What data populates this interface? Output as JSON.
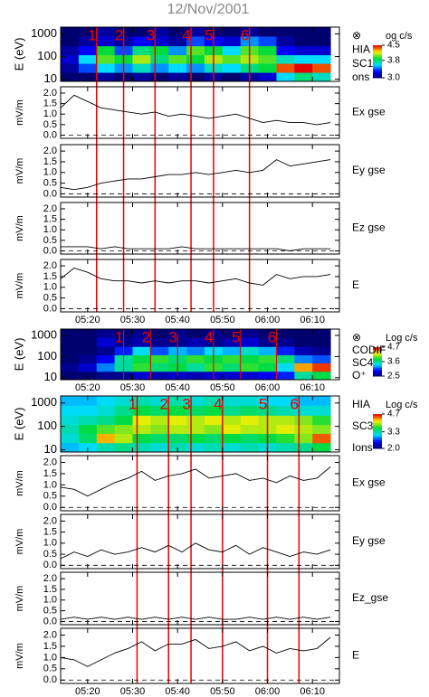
{
  "title": "12/Nov/2001",
  "chart_data": [
    {
      "type": "heatmap",
      "ylabel": "E (eV)",
      "log": true,
      "ylim": [
        8,
        2000
      ],
      "yticks": [
        10,
        100,
        1000
      ],
      "xlim": [
        "05:14",
        "06:16"
      ],
      "xticks": [
        "05:20",
        "05:30",
        "05:40",
        "05:50",
        "06:00",
        "06:10"
      ],
      "labels": [
        "⊗",
        "HIA",
        "SC1",
        "ons"
      ],
      "colorbar": {
        "label": "og c/s",
        "lim": [
          3,
          4.5
        ],
        "ticks": [
          4.5,
          3.8,
          {
            "value": 3,
            "label": "3.0"
          }
        ]
      },
      "events": [
        {
          "time": "05:22",
          "label": "1"
        },
        {
          "time": "05:28",
          "label": "2"
        },
        {
          "time": "05:35",
          "label": "3"
        },
        {
          "time": "05:43",
          "label": "4"
        },
        {
          "time": "05:48",
          "label": "5"
        },
        {
          "time": "05:56",
          "label": "6"
        }
      ],
      "xbins": [
        "05:14",
        "05:18",
        "05:22",
        "05:26",
        "05:30",
        "05:34",
        "05:38",
        "05:42",
        "05:46",
        "05:50",
        "05:54",
        "05:58",
        "06:02",
        "06:06",
        "06:10",
        "06:14"
      ],
      "ybins": [
        8,
        20,
        50,
        120,
        300,
        800,
        2000
      ],
      "z": [
        [
          3.0,
          3.0,
          3.1,
          3.0,
          3.1,
          3.0,
          3.1,
          3.0,
          3.1,
          3.0,
          3.1,
          3.2,
          3.6,
          3.8,
          3.7
        ],
        [
          3.1,
          3.4,
          3.6,
          3.5,
          3.7,
          3.5,
          3.6,
          3.5,
          3.7,
          3.6,
          3.8,
          3.9,
          4.4,
          4.5,
          4.4
        ],
        [
          3.2,
          3.6,
          4.0,
          3.9,
          4.1,
          3.8,
          4.0,
          3.9,
          4.1,
          4.0,
          4.1,
          4.0,
          3.7,
          3.6,
          3.6
        ],
        [
          3.1,
          3.3,
          3.9,
          3.4,
          3.8,
          3.9,
          3.5,
          4.0,
          3.9,
          3.6,
          4.0,
          3.9,
          3.3,
          3.2,
          3.2
        ],
        [
          3.0,
          3.1,
          3.2,
          3.1,
          3.3,
          3.2,
          3.1,
          3.4,
          3.3,
          3.2,
          3.5,
          3.4,
          3.1,
          3.0,
          3.0
        ],
        [
          3.0,
          3.0,
          3.1,
          3.0,
          3.0,
          3.1,
          3.0,
          3.1,
          3.0,
          3.0,
          3.1,
          3.0,
          3.0,
          3.0,
          3.0
        ]
      ]
    },
    {
      "type": "line",
      "ylabel": "mV/m",
      "labels": [
        "Ex gse"
      ],
      "color": "#000000",
      "ref_line": 0,
      "ylim": [
        -0.15,
        2.3
      ],
      "yticks": [
        {
          "value": 0,
          "label": "0.0"
        },
        0.5,
        {
          "value": 1,
          "label": "1.0"
        },
        1.5,
        {
          "value": 2,
          "label": "2.0"
        }
      ],
      "xlim": [
        "05:14",
        "06:16"
      ],
      "xticks": [
        "05:20",
        "05:30",
        "05:40",
        "05:50",
        "06:00",
        "06:10"
      ],
      "x": [
        "05:14",
        "05:17",
        "05:20",
        "05:23",
        "05:26",
        "05:29",
        "05:32",
        "05:35",
        "05:38",
        "05:41",
        "05:44",
        "05:47",
        "05:50",
        "05:53",
        "05:56",
        "05:59",
        "06:02",
        "06:05",
        "06:08",
        "06:11",
        "06:14"
      ],
      "values": [
        1.3,
        1.9,
        1.6,
        1.3,
        1.2,
        1.1,
        1.0,
        1.1,
        0.9,
        1.0,
        0.9,
        0.8,
        0.9,
        1.0,
        0.8,
        0.6,
        0.7,
        0.6,
        0.6,
        0.5,
        0.6
      ]
    },
    {
      "type": "line",
      "ylabel": "mV/m",
      "labels": [
        "Ey gse"
      ],
      "color": "#000000",
      "ref_line": 0,
      "ylim": [
        -0.15,
        2.3
      ],
      "yticks": [
        {
          "value": 0,
          "label": "0.0"
        },
        0.5,
        {
          "value": 1,
          "label": "1.0"
        },
        1.5,
        {
          "value": 2,
          "label": "2.0"
        }
      ],
      "xlim": [
        "05:14",
        "06:16"
      ],
      "xticks": [
        "05:20",
        "05:30",
        "05:40",
        "05:50",
        "06:00",
        "06:10"
      ],
      "x": [
        "05:14",
        "05:17",
        "05:20",
        "05:23",
        "05:26",
        "05:29",
        "05:32",
        "05:35",
        "05:38",
        "05:41",
        "05:44",
        "05:47",
        "05:50",
        "05:53",
        "05:56",
        "05:59",
        "06:02",
        "06:05",
        "06:08",
        "06:11",
        "06:14"
      ],
      "values": [
        0.3,
        0.2,
        0.3,
        0.5,
        0.6,
        0.7,
        0.7,
        0.8,
        0.9,
        0.9,
        1.0,
        0.9,
        1.0,
        1.1,
        1.0,
        1.1,
        1.6,
        1.3,
        1.4,
        1.5,
        1.6
      ]
    },
    {
      "type": "line",
      "ylabel": "mV/m",
      "labels": [
        "Ez gse"
      ],
      "color": "#000000",
      "ref_line": 0,
      "ylim": [
        -0.15,
        2.3
      ],
      "yticks": [
        {
          "value": 0,
          "label": "0.0"
        },
        0.5,
        {
          "value": 1,
          "label": "1.0"
        },
        1.5,
        {
          "value": 2,
          "label": "2.0"
        }
      ],
      "xlim": [
        "05:14",
        "06:16"
      ],
      "xticks": [
        "05:20",
        "05:30",
        "05:40",
        "05:50",
        "06:00",
        "06:10"
      ],
      "x": [
        "05:14",
        "05:17",
        "05:20",
        "05:23",
        "05:26",
        "05:29",
        "05:32",
        "05:35",
        "05:38",
        "05:41",
        "05:44",
        "05:47",
        "05:50",
        "05:53",
        "05:56",
        "05:59",
        "06:02",
        "06:05",
        "06:08",
        "06:11",
        "06:14"
      ],
      "values": [
        0.2,
        0.2,
        0.2,
        0.1,
        0.2,
        0.1,
        0.1,
        0.1,
        0.1,
        0.2,
        0.1,
        0.1,
        0.1,
        0.1,
        0.1,
        0.1,
        0.1,
        0.0,
        0.1,
        0.1,
        0.1
      ]
    },
    {
      "type": "line",
      "ylabel": "mV/m",
      "labels": [
        "E"
      ],
      "color": "#000000",
      "ref_line": 0,
      "xlabels": true,
      "ylim": [
        -0.15,
        2.3
      ],
      "yticks": [
        {
          "value": 0,
          "label": "0.0"
        },
        0.5,
        {
          "value": 1,
          "label": "1.0"
        },
        1.5,
        {
          "value": 2,
          "label": "2.0"
        }
      ],
      "xlim": [
        "05:14",
        "06:16"
      ],
      "xticks": [
        "05:20",
        "05:30",
        "05:40",
        "05:50",
        "06:00",
        "06:10"
      ],
      "x": [
        "05:14",
        "05:17",
        "05:20",
        "05:23",
        "05:26",
        "05:29",
        "05:32",
        "05:35",
        "05:38",
        "05:41",
        "05:44",
        "05:47",
        "05:50",
        "05:53",
        "05:56",
        "05:59",
        "06:02",
        "06:05",
        "06:08",
        "06:11",
        "06:14"
      ],
      "values": [
        1.4,
        1.9,
        1.7,
        1.4,
        1.3,
        1.3,
        1.2,
        1.3,
        1.2,
        1.3,
        1.3,
        1.2,
        1.3,
        1.4,
        1.2,
        1.1,
        1.6,
        1.4,
        1.5,
        1.5,
        1.6
      ]
    },
    {
      "type": "heatmap",
      "ylabel": "E (eV)",
      "log": true,
      "ylim": [
        8,
        2000
      ],
      "yticks": [
        10,
        100,
        1000
      ],
      "xlabels": true,
      "xlim": [
        "05:14",
        "06:16"
      ],
      "xticks": [
        "05:20",
        "05:30",
        "05:40",
        "05:50",
        "06:00",
        "06:10"
      ],
      "labels": [
        "⊗",
        "CODIF",
        "SC4",
        "O⁺"
      ],
      "colorbar": {
        "label": "Log c/s",
        "lim": [
          2.5,
          4.7
        ],
        "ticks": [
          4.7,
          3.6,
          2.5
        ]
      },
      "events": [
        {
          "time": "05:28",
          "label": "1"
        },
        {
          "time": "05:34",
          "label": "2"
        },
        {
          "time": "05:40",
          "label": "3"
        },
        {
          "time": "05:48",
          "label": "4"
        },
        {
          "time": "05:54",
          "label": "5"
        },
        {
          "time": "06:02",
          "label": "6"
        }
      ],
      "xbins": [
        "05:14",
        "05:18",
        "05:22",
        "05:26",
        "05:30",
        "05:34",
        "05:38",
        "05:42",
        "05:46",
        "05:50",
        "05:54",
        "05:58",
        "06:02",
        "06:06",
        "06:10",
        "06:14"
      ],
      "ybins": [
        8,
        20,
        50,
        120,
        300,
        800,
        2000
      ],
      "z": [
        [
          2.4,
          2.5,
          2.6,
          2.6,
          2.8,
          2.7,
          2.8,
          2.7,
          2.8,
          2.8,
          2.8,
          2.9,
          3.0,
          3.6,
          3.8
        ],
        [
          2.6,
          2.8,
          3.2,
          3.6,
          3.9,
          3.7,
          3.8,
          3.6,
          3.9,
          3.7,
          3.9,
          3.8,
          3.4,
          4.4,
          4.6
        ],
        [
          2.5,
          2.6,
          2.9,
          3.6,
          3.8,
          3.9,
          3.7,
          3.9,
          3.8,
          3.9,
          3.8,
          3.9,
          3.7,
          3.2,
          3.1
        ],
        [
          2.4,
          2.5,
          2.6,
          3.0,
          3.4,
          3.1,
          3.3,
          3.2,
          3.4,
          3.3,
          3.5,
          3.3,
          3.0,
          2.7,
          2.6
        ],
        [
          2.4,
          2.5,
          2.8,
          2.6,
          2.7,
          2.6,
          2.6,
          2.7,
          2.6,
          2.7,
          2.8,
          2.6,
          2.6,
          2.5,
          2.5
        ],
        [
          2.4,
          2.5,
          2.6,
          2.5,
          2.6,
          2.5,
          2.6,
          2.5,
          2.6,
          2.5,
          2.6,
          2.5,
          2.5,
          2.5,
          2.5
        ]
      ]
    },
    {
      "type": "heatmap",
      "ylabel": "E (eV)",
      "log": true,
      "ylim": [
        8,
        2000
      ],
      "yticks": [
        10,
        100,
        1000
      ],
      "xlim": [
        "05:14",
        "06:16"
      ],
      "xticks": [
        "05:20",
        "05:30",
        "05:40",
        "05:50",
        "06:00",
        "06:10"
      ],
      "labels": [
        "HIA",
        "SC3",
        "Ions"
      ],
      "colorbar": {
        "label": "Log c/s",
        "lim": [
          2,
          4.7
        ],
        "ticks": [
          4.7,
          3.3,
          {
            "value": 2,
            "label": "2.0"
          }
        ]
      },
      "events": [
        {
          "time": "05:31",
          "label": "1"
        },
        {
          "time": "05:38",
          "label": "2"
        },
        {
          "time": "05:43",
          "label": "3"
        },
        {
          "time": "05:50",
          "label": "4"
        },
        {
          "time": "06:00",
          "label": "5"
        },
        {
          "time": "06:07",
          "label": "6"
        }
      ],
      "xbins": [
        "05:14",
        "05:18",
        "05:22",
        "05:26",
        "05:30",
        "05:34",
        "05:38",
        "05:42",
        "05:46",
        "05:50",
        "05:54",
        "05:58",
        "06:02",
        "06:06",
        "06:10",
        "06:14"
      ],
      "ybins": [
        8,
        20,
        50,
        120,
        300,
        800,
        2000
      ],
      "z": [
        [
          3.0,
          3.1,
          3.3,
          3.4,
          3.3,
          3.2,
          3.3,
          3.2,
          3.3,
          3.2,
          3.3,
          3.2,
          3.3,
          3.4,
          3.6
        ],
        [
          3.2,
          3.5,
          4.3,
          4.0,
          3.6,
          3.5,
          3.5,
          3.6,
          3.5,
          3.6,
          3.5,
          3.6,
          3.7,
          3.9,
          4.5
        ],
        [
          3.3,
          3.6,
          3.8,
          3.9,
          4.0,
          3.9,
          4.0,
          4.0,
          3.9,
          4.1,
          4.0,
          4.0,
          4.1,
          4.0,
          3.9
        ],
        [
          3.2,
          3.3,
          3.4,
          3.6,
          4.1,
          4.0,
          4.1,
          4.0,
          4.1,
          4.0,
          4.1,
          4.0,
          4.0,
          3.9,
          3.7
        ],
        [
          3.1,
          3.1,
          3.2,
          3.4,
          3.6,
          3.5,
          3.6,
          3.5,
          3.6,
          3.4,
          3.5,
          3.4,
          3.3,
          3.2,
          3.2
        ],
        [
          3.0,
          3.0,
          3.1,
          3.2,
          3.3,
          3.2,
          3.3,
          3.2,
          3.3,
          3.2,
          3.2,
          3.1,
          3.1,
          3.0,
          3.0
        ]
      ]
    },
    {
      "type": "line",
      "ylabel": "mV/m",
      "labels": [
        "Ex gse"
      ],
      "color": "#000000",
      "ref_line": 0,
      "ylim": [
        -0.15,
        2.3
      ],
      "yticks": [
        {
          "value": 0,
          "label": "0.0"
        },
        0.5,
        {
          "value": 1,
          "label": "1.0"
        },
        1.5,
        {
          "value": 2,
          "label": "2.0"
        }
      ],
      "xlim": [
        "05:14",
        "06:16"
      ],
      "xticks": [
        "05:20",
        "05:30",
        "05:40",
        "05:50",
        "06:00",
        "06:10"
      ],
      "x": [
        "05:14",
        "05:17",
        "05:20",
        "05:23",
        "05:26",
        "05:29",
        "05:32",
        "05:35",
        "05:38",
        "05:41",
        "05:44",
        "05:47",
        "05:50",
        "05:53",
        "05:56",
        "05:59",
        "06:02",
        "06:05",
        "06:08",
        "06:11",
        "06:14"
      ],
      "values": [
        0.9,
        0.8,
        0.5,
        0.8,
        1.1,
        1.3,
        1.6,
        1.2,
        1.4,
        1.5,
        1.7,
        1.3,
        1.4,
        1.5,
        1.2,
        1.3,
        1.1,
        1.4,
        1.2,
        1.3,
        1.8
      ]
    },
    {
      "type": "line",
      "ylabel": "mV/m",
      "labels": [
        "Ey gse"
      ],
      "color": "#000000",
      "ref_line": 0,
      "ylim": [
        -0.15,
        2.3
      ],
      "yticks": [
        {
          "value": 0,
          "label": "0.0"
        },
        0.5,
        {
          "value": 1,
          "label": "1.0"
        },
        1.5,
        {
          "value": 2,
          "label": "2.0"
        }
      ],
      "xlim": [
        "05:14",
        "06:16"
      ],
      "xticks": [
        "05:20",
        "05:30",
        "05:40",
        "05:50",
        "06:00",
        "06:10"
      ],
      "x": [
        "05:14",
        "05:17",
        "05:20",
        "05:23",
        "05:26",
        "05:29",
        "05:32",
        "05:35",
        "05:38",
        "05:41",
        "05:44",
        "05:47",
        "05:50",
        "05:53",
        "05:56",
        "05:59",
        "06:02",
        "06:05",
        "06:08",
        "06:11",
        "06:14"
      ],
      "values": [
        0.3,
        0.6,
        0.4,
        0.7,
        0.5,
        0.6,
        0.8,
        0.6,
        0.9,
        0.6,
        1.0,
        0.7,
        0.6,
        0.9,
        0.5,
        0.8,
        0.6,
        0.4,
        0.6,
        0.5,
        0.7
      ]
    },
    {
      "type": "line",
      "ylabel": "mV/m",
      "labels": [
        "Ez_gse"
      ],
      "color": "#000000",
      "ref_line": 0,
      "ylim": [
        -0.15,
        2.3
      ],
      "yticks": [
        {
          "value": 0,
          "label": "0.0"
        },
        0.5,
        {
          "value": 1,
          "label": "1.0"
        },
        1.5,
        {
          "value": 2,
          "label": "2.0"
        }
      ],
      "xlim": [
        "05:14",
        "06:16"
      ],
      "xticks": [
        "05:20",
        "05:30",
        "05:40",
        "05:50",
        "06:00",
        "06:10"
      ],
      "x": [
        "05:14",
        "05:17",
        "05:20",
        "05:23",
        "05:26",
        "05:29",
        "05:32",
        "05:35",
        "05:38",
        "05:41",
        "05:44",
        "05:47",
        "05:50",
        "05:53",
        "05:56",
        "05:59",
        "06:02",
        "06:05",
        "06:08",
        "06:11",
        "06:14"
      ],
      "values": [
        0.1,
        0.2,
        0.1,
        0.2,
        0.1,
        0.2,
        0.1,
        0.2,
        0.1,
        0.2,
        0.1,
        0.2,
        0.1,
        0.1,
        0.2,
        0.1,
        0.2,
        0.1,
        0.2,
        0.1,
        0.2
      ]
    },
    {
      "type": "line",
      "ylabel": "mV/m",
      "labels": [
        "E"
      ],
      "color": "#000000",
      "ref_line": 0,
      "xlabels": true,
      "ylim": [
        -0.15,
        2.3
      ],
      "yticks": [
        {
          "value": 0,
          "label": "0.0"
        },
        0.5,
        {
          "value": 1,
          "label": "1.0"
        },
        1.5,
        {
          "value": 2,
          "label": "2.0"
        }
      ],
      "xlim": [
        "05:14",
        "06:16"
      ],
      "xticks": [
        "05:20",
        "05:30",
        "05:40",
        "05:50",
        "06:00",
        "06:10"
      ],
      "x": [
        "05:14",
        "05:17",
        "05:20",
        "05:23",
        "05:26",
        "05:29",
        "05:32",
        "05:35",
        "05:38",
        "05:41",
        "05:44",
        "05:47",
        "05:50",
        "05:53",
        "05:56",
        "05:59",
        "06:02",
        "06:05",
        "06:08",
        "06:11",
        "06:14"
      ],
      "values": [
        1.0,
        0.9,
        0.6,
        0.9,
        1.2,
        1.4,
        1.7,
        1.3,
        1.6,
        1.6,
        1.8,
        1.4,
        1.5,
        1.7,
        1.3,
        1.5,
        1.2,
        1.4,
        1.3,
        1.4,
        1.9
      ]
    }
  ]
}
